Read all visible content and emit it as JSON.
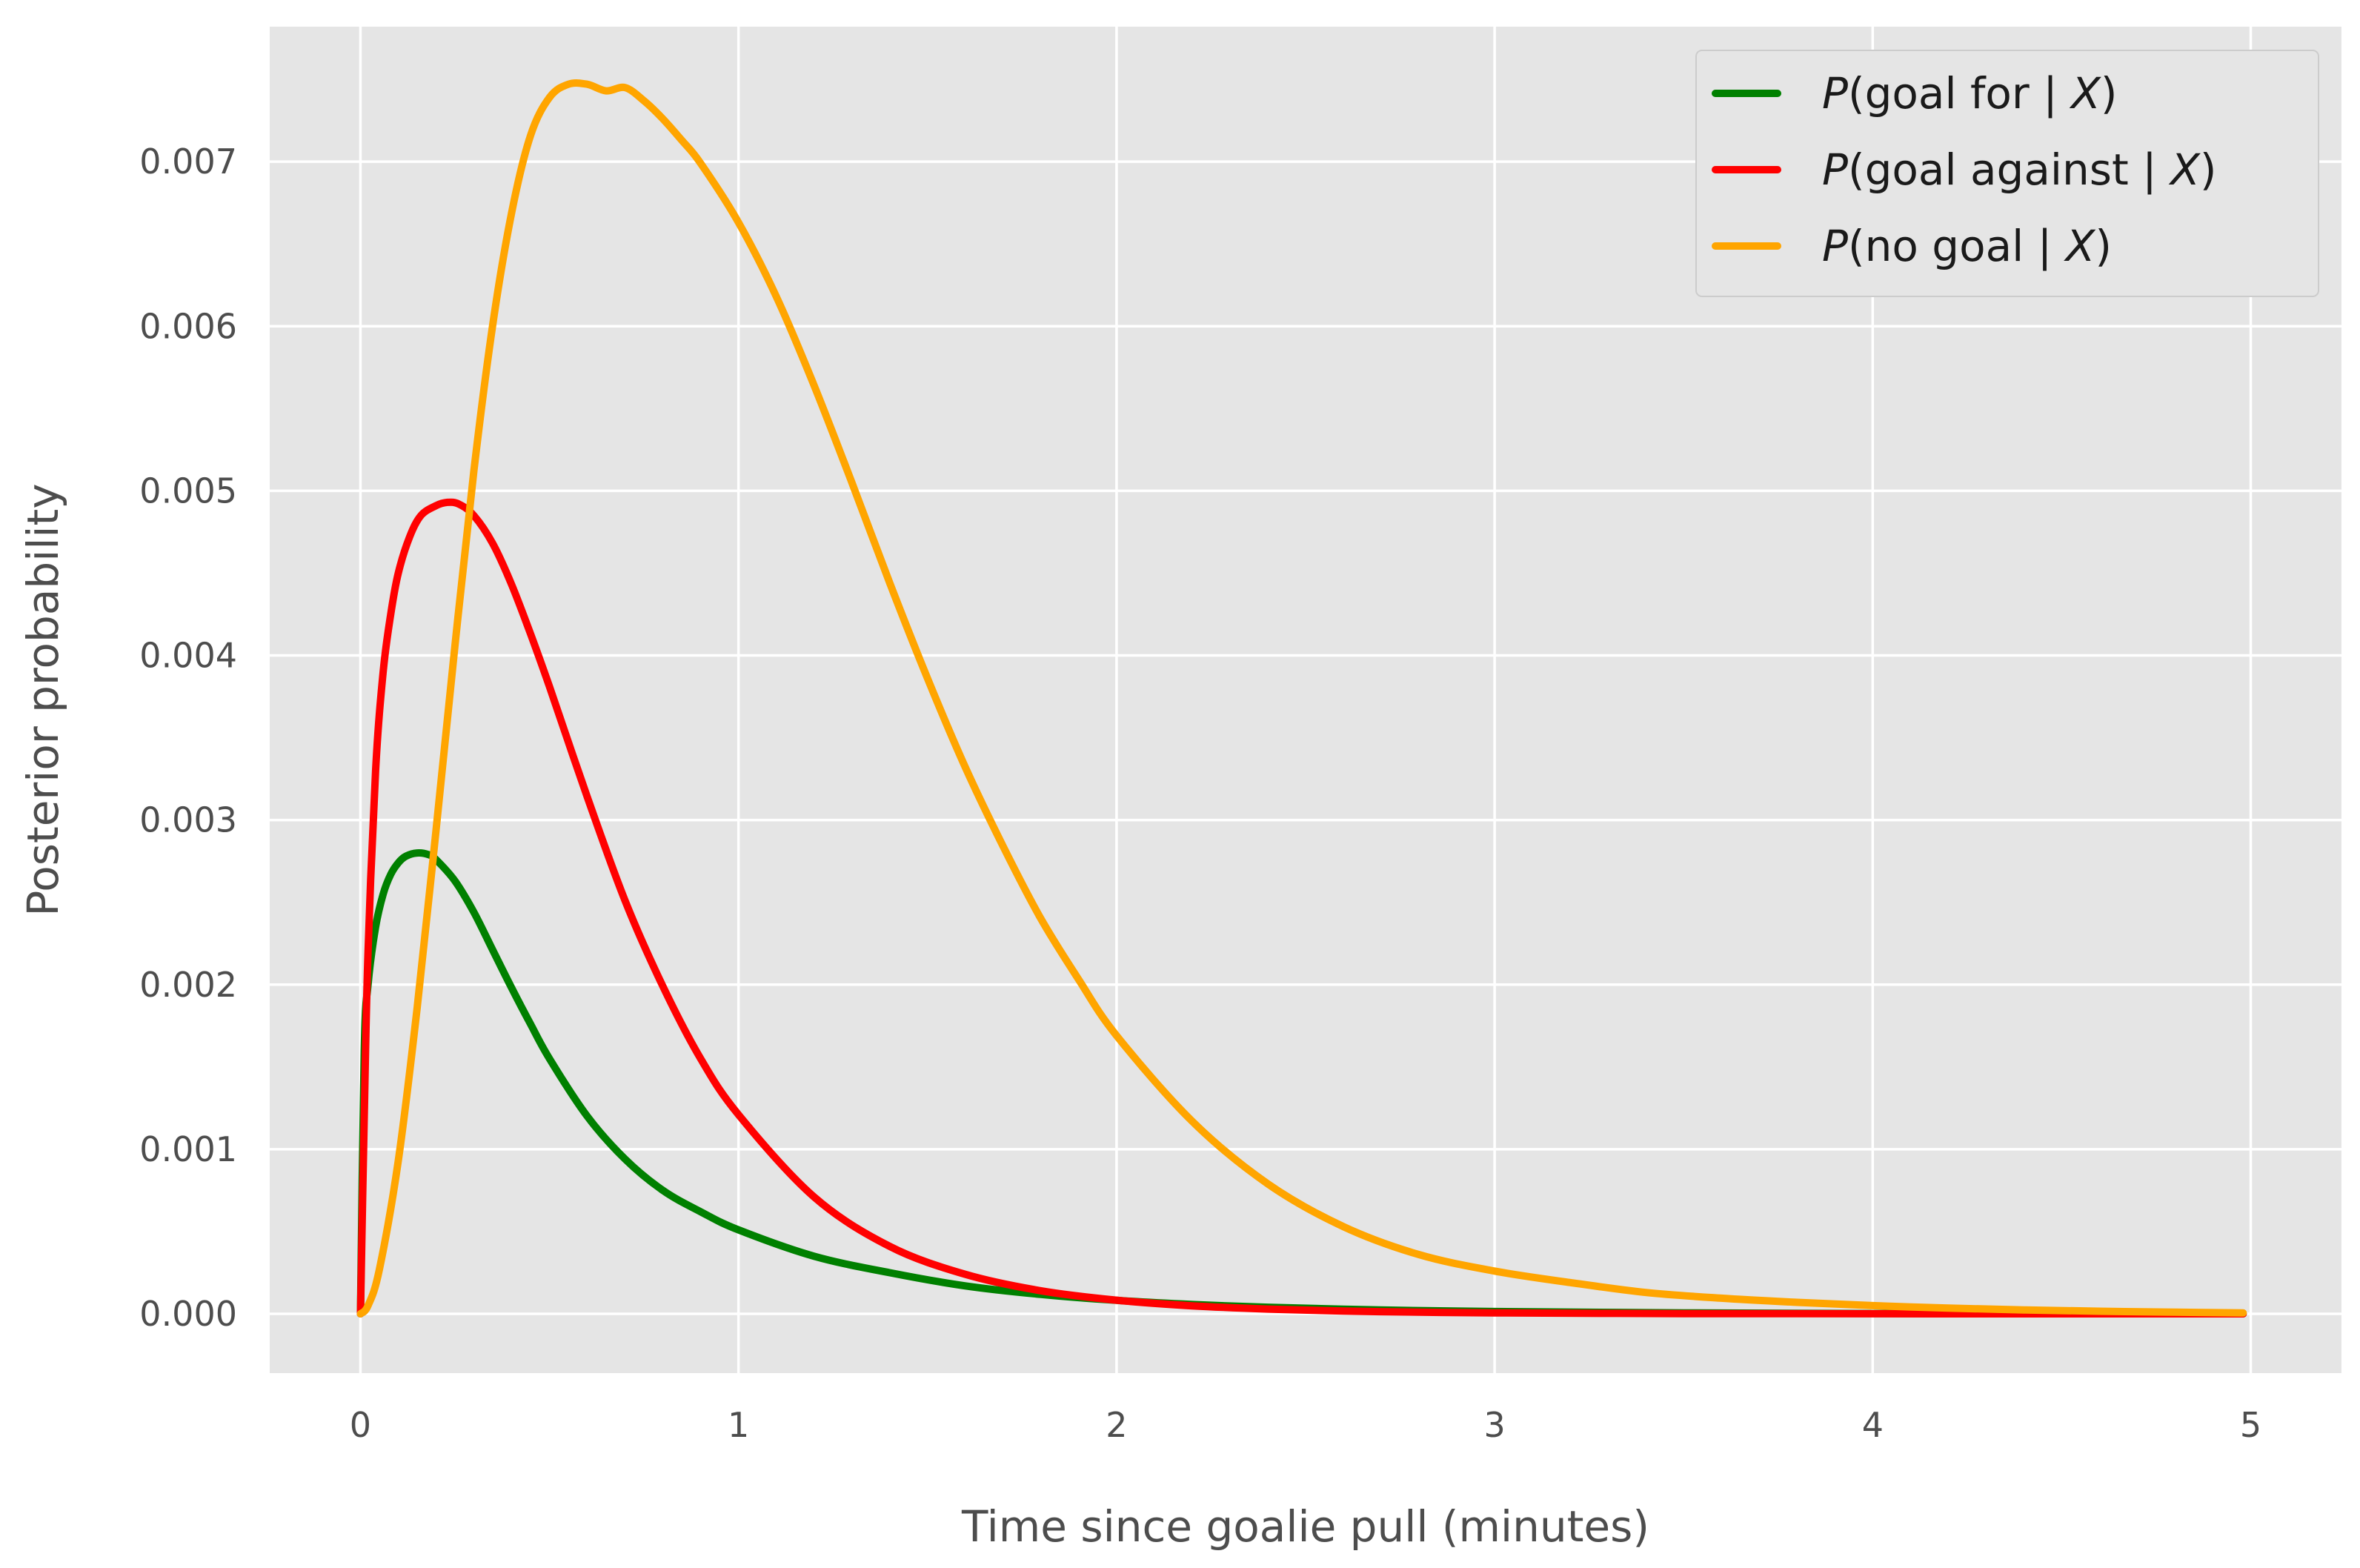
{
  "chart_data": {
    "type": "line",
    "title": "",
    "xlabel": "Time since goalie pull (minutes)",
    "ylabel": "Posterior probability",
    "xlim": [
      -0.24,
      5.24
    ],
    "ylim": [
      -0.00036,
      0.00782
    ],
    "x_ticks": [
      0,
      1,
      2,
      3,
      4,
      5
    ],
    "x_tick_labels": [
      "0",
      "1",
      "2",
      "3",
      "4",
      "5"
    ],
    "y_ticks": [
      0.0,
      0.001,
      0.002,
      0.003,
      0.004,
      0.005,
      0.006,
      0.007
    ],
    "y_tick_labels": [
      "0.000",
      "0.001",
      "0.002",
      "0.003",
      "0.004",
      "0.005",
      "0.006",
      "0.007"
    ],
    "grid": true,
    "background_color": "#e5e5e5",
    "grid_color": "#ffffff",
    "legend_placement": "top-right",
    "series": [
      {
        "name": "P(goal for | X)",
        "name_parts": {
          "var": "P",
          "text": "(goal for | ",
          "cond": "X",
          "close": ")"
        },
        "color": "#008000",
        "x": [
          0,
          0.01,
          0.02,
          0.04,
          0.06,
          0.08,
          0.1,
          0.12,
          0.15,
          0.18,
          0.2,
          0.25,
          0.3,
          0.35,
          0.4,
          0.45,
          0.5,
          0.6,
          0.7,
          0.8,
          0.9,
          1.0,
          1.2,
          1.4,
          1.6,
          1.8,
          2.0,
          2.2,
          2.4,
          2.6,
          2.8,
          3.0,
          3.5,
          4.0,
          4.5,
          4.98
        ],
        "y": [
          0,
          0.0016,
          0.002,
          0.00235,
          0.00255,
          0.00267,
          0.00274,
          0.00278,
          0.0028,
          0.00279,
          0.00276,
          0.00263,
          0.00244,
          0.00221,
          0.00198,
          0.00176,
          0.00155,
          0.0012,
          0.00094,
          0.00075,
          0.00062,
          0.00051,
          0.00035,
          0.00025,
          0.00017,
          0.000118,
          8.2e-05,
          5.7e-05,
          4e-05,
          2.8e-05,
          2e-05,
          1.4e-05,
          6e-06,
          2e-06,
          8e-07,
          3e-07
        ]
      },
      {
        "name": "P(goal against | X)",
        "name_parts": {
          "var": "P",
          "text": "(goal against | ",
          "cond": "X",
          "close": ")"
        },
        "color": "#ff0000",
        "x": [
          0,
          0.01,
          0.02,
          0.04,
          0.06,
          0.08,
          0.1,
          0.13,
          0.16,
          0.2,
          0.23,
          0.26,
          0.3,
          0.35,
          0.4,
          0.45,
          0.5,
          0.6,
          0.7,
          0.8,
          0.9,
          1.0,
          1.2,
          1.4,
          1.6,
          1.8,
          2.0,
          2.2,
          2.4,
          2.6,
          2.8,
          3.0,
          3.5,
          4.0,
          4.5,
          4.98
        ],
        "y": [
          0,
          0.0012,
          0.0022,
          0.0033,
          0.0039,
          0.00425,
          0.0045,
          0.00472,
          0.00485,
          0.00491,
          0.00493,
          0.00492,
          0.00485,
          0.00468,
          0.00443,
          0.00413,
          0.00381,
          0.00314,
          0.00251,
          0.00199,
          0.00155,
          0.00121,
          0.00071,
          0.00041,
          0.00024,
          0.00014,
          8.3e-05,
          4.9e-05,
          2.9e-05,
          1.7e-05,
          1e-05,
          6e-06,
          1.5e-06,
          4e-07,
          1e-07,
          3e-08
        ]
      },
      {
        "name": "P(no goal | X)",
        "name_parts": {
          "var": "P",
          "text": "(no goal | ",
          "cond": "X",
          "close": ")"
        },
        "color": "#ffa500",
        "x": [
          0,
          0.02,
          0.05,
          0.1,
          0.15,
          0.2,
          0.25,
          0.3,
          0.35,
          0.4,
          0.45,
          0.5,
          0.55,
          0.6,
          0.65,
          0.7,
          0.75,
          0.8,
          0.85,
          0.9,
          1.0,
          1.1,
          1.2,
          1.3,
          1.4,
          1.5,
          1.6,
          1.7,
          1.8,
          1.9,
          2.0,
          2.2,
          2.4,
          2.6,
          2.8,
          3.0,
          3.2,
          3.4,
          3.6,
          3.8,
          4.0,
          4.2,
          4.4,
          4.6,
          4.8,
          4.98
        ],
        "y": [
          0,
          5e-05,
          0.00027,
          0.00093,
          0.00186,
          0.00294,
          0.00406,
          0.00512,
          0.00601,
          0.00669,
          0.00716,
          0.00739,
          0.00747,
          0.00747,
          0.00743,
          0.00745,
          0.00737,
          0.00726,
          0.00713,
          0.00699,
          0.00663,
          0.00618,
          0.00564,
          0.00505,
          0.00444,
          0.00386,
          0.00332,
          0.00284,
          0.0024,
          0.00203,
          0.00169,
          0.00117,
          0.00079,
          0.00053,
          0.00036,
          0.00026,
          0.00019,
          0.00013,
          9.5e-05,
          7e-05,
          5e-05,
          3.5e-05,
          2.4e-05,
          1.6e-05,
          1e-05,
          6e-06
        ]
      }
    ]
  }
}
